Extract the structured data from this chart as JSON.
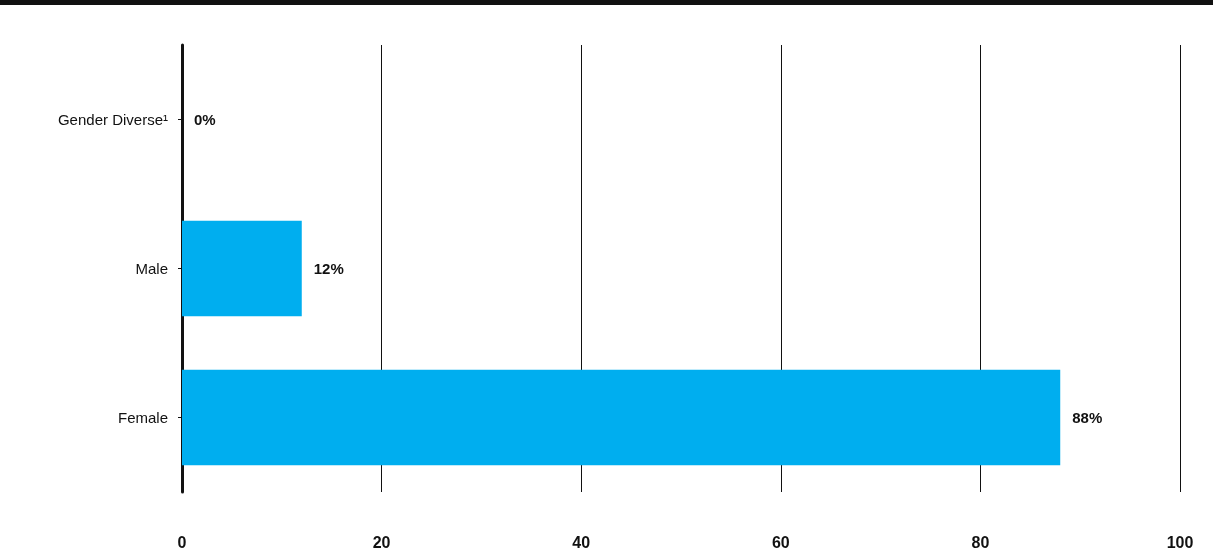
{
  "chart_data": {
    "type": "bar",
    "orientation": "horizontal",
    "categories": [
      "Gender Diverse¹",
      "Male",
      "Female"
    ],
    "values": [
      0,
      12,
      88
    ],
    "color": "#00aeef",
    "value_labels": [
      "0%",
      "12%",
      "88%"
    ],
    "xlim": [
      0,
      100
    ],
    "xticks": [
      0,
      20,
      40,
      60,
      80,
      100
    ],
    "grid": "x"
  }
}
